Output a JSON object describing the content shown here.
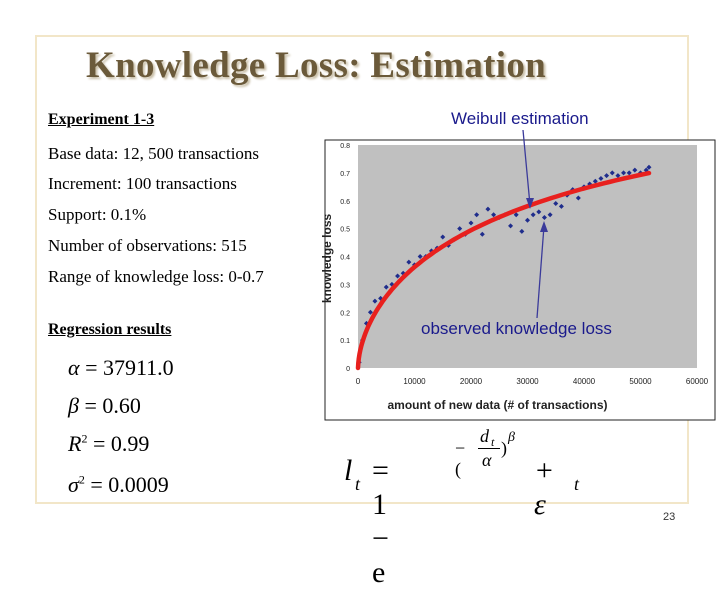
{
  "title": "Knowledge Loss: Estimation",
  "left": {
    "heading": "Experiment 1-3",
    "lines": [
      "Base data: 12, 500 transactions",
      "Increment: 100 transactions",
      "Support: 0.1%",
      "Number of observations: 515",
      "Range of knowledge loss: 0-0.7"
    ],
    "regression_heading": "Regression results"
  },
  "results": {
    "alpha": "37911.0",
    "beta": "0.60",
    "r2": "0.99",
    "sigma2": "0.0009"
  },
  "callouts": {
    "weibull": "Weibull estimation",
    "observed": "observed knowledge loss"
  },
  "formula": {
    "lhs": "l",
    "sub_t": "t",
    "equals_one": "= 1 − e",
    "exp_num": "d",
    "exp_den": "α",
    "exp_beta": "β",
    "plus_eps": "+ ε",
    "minus": "−("
  },
  "page_number": "23",
  "colors": {
    "plot_bg": "#c0c0c0",
    "observed": "#1f2d8c",
    "fit": "#e8201e",
    "title": "#6b5a3a"
  },
  "chart_data": {
    "type": "scatter",
    "xlabel": "amount of new data (# of transactions)",
    "ylabel": "knowledge loss",
    "xlim": [
      0,
      60000
    ],
    "ylim": [
      0,
      0.8
    ],
    "x_ticks": [
      "0",
      "10000",
      "20000",
      "30000",
      "40000",
      "50000",
      "60000"
    ],
    "y_ticks": [
      "0",
      "0.1",
      "0.2",
      "0.3",
      "0.4",
      "0.5",
      "0.6",
      "0.7",
      "0.8"
    ],
    "series": [
      {
        "name": "observed knowledge loss",
        "x": [
          200,
          800,
          1500,
          2200,
          3000,
          4000,
          5000,
          6000,
          7000,
          8000,
          9000,
          10000,
          11000,
          12000,
          13000,
          14000,
          15000,
          16000,
          17000,
          18000,
          19000,
          20000,
          21000,
          22000,
          23000,
          24000,
          25000,
          26000,
          27000,
          28000,
          29000,
          30000,
          31000,
          32000,
          33000,
          34000,
          35000,
          36000,
          37000,
          38000,
          39000,
          40000,
          41000,
          42000,
          43000,
          44000,
          45000,
          46000,
          47000,
          48000,
          49000,
          50000,
          51000,
          51500
        ],
        "y": [
          0.02,
          0.1,
          0.16,
          0.2,
          0.24,
          0.25,
          0.29,
          0.3,
          0.33,
          0.34,
          0.38,
          0.37,
          0.4,
          0.4,
          0.42,
          0.43,
          0.47,
          0.44,
          0.46,
          0.5,
          0.48,
          0.52,
          0.55,
          0.48,
          0.57,
          0.55,
          0.54,
          0.55,
          0.51,
          0.55,
          0.49,
          0.53,
          0.55,
          0.56,
          0.54,
          0.55,
          0.59,
          0.58,
          0.62,
          0.64,
          0.61,
          0.65,
          0.66,
          0.67,
          0.68,
          0.69,
          0.7,
          0.69,
          0.7,
          0.7,
          0.71,
          0.7,
          0.71,
          0.72
        ]
      },
      {
        "name": "Weibull estimation",
        "model": "l_t = 1 - exp(-(d_t/alpha)^beta)",
        "alpha": 37911.0,
        "beta": 0.6
      }
    ]
  }
}
